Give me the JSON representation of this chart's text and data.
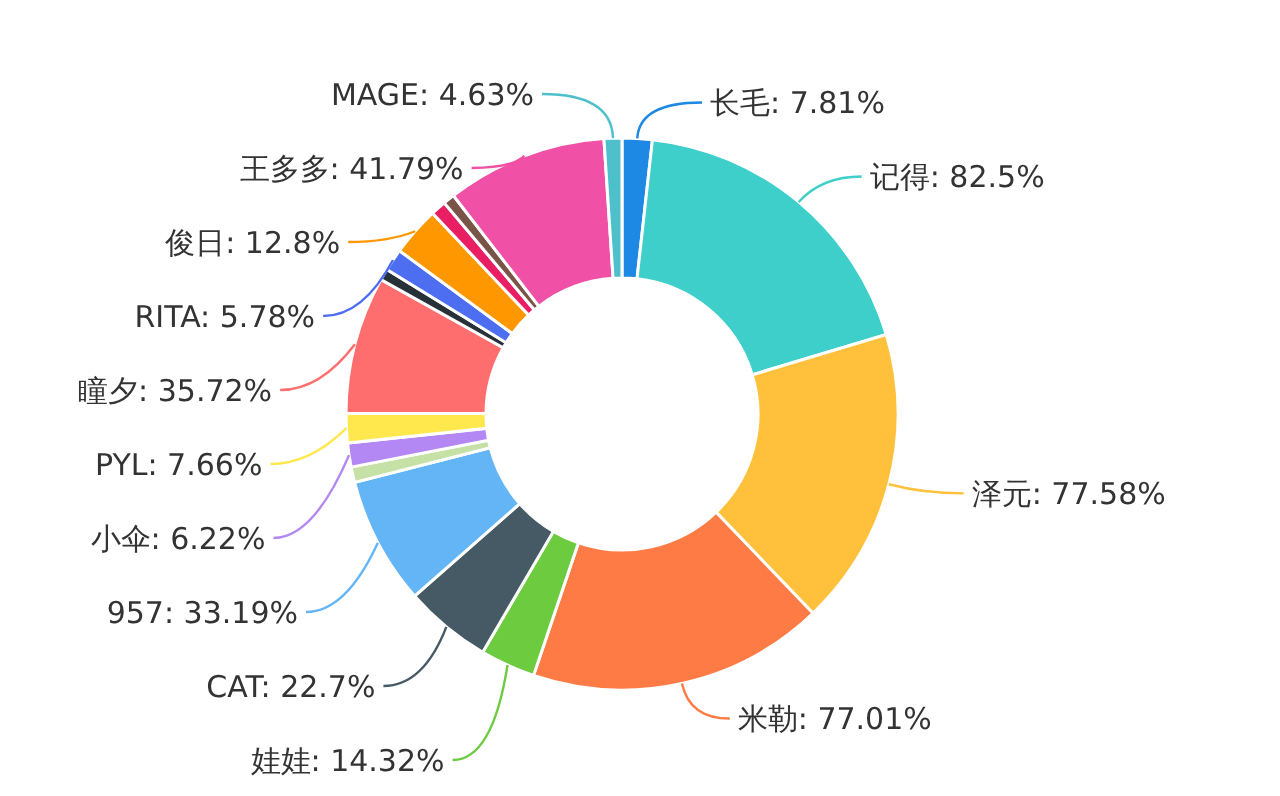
{
  "chart_data": {
    "type": "donut",
    "categories": [
      "长毛",
      "记得",
      "泽元",
      "米勒",
      "娃娃",
      "CAT",
      "957",
      null,
      "小伞",
      "PYL",
      "瞳夕",
      null,
      "RITA",
      "俊日",
      null,
      null,
      "王多多",
      "MAGE"
    ],
    "values": [
      7.81,
      82.5,
      77.58,
      77.01,
      14.32,
      22.7,
      33.19,
      4,
      6.22,
      7.66,
      35.72,
      3,
      5.78,
      12.8,
      4,
      3,
      41.79,
      4.63
    ],
    "value_labels": [
      "7.81%",
      "82.5%",
      "77.58%",
      "77.01%",
      "14.32%",
      "22.7%",
      "33.19%",
      null,
      "6.22%",
      "7.66%",
      "35.72%",
      null,
      "5.78%",
      "12.8%",
      null,
      null,
      "41.79%",
      "4.63%"
    ],
    "colors": [
      "#1e88e5",
      "#3ecfca",
      "#ffc13b",
      "#ff7b45",
      "#6ccb3f",
      "#455a64",
      "#64b5f6",
      "#c5e1a5",
      "#b388f5",
      "#ffe84d",
      "#ff6e6e",
      "#263238",
      "#4e6ef2",
      "#ff9800",
      "#e91e63",
      "#795548",
      "#f050a5",
      "#4dc0cc"
    ]
  }
}
